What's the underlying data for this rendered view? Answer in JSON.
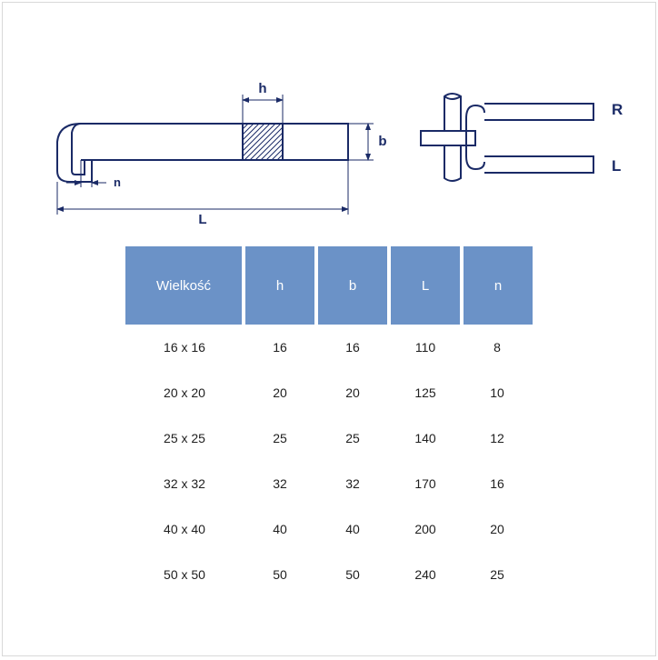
{
  "diagram": {
    "labels": {
      "h": "h",
      "b": "b",
      "n": "n",
      "L": "L",
      "R": "R",
      "L2": "L"
    },
    "stroke": "#1a2a66",
    "stroke_width": 2,
    "hatch_spacing": 5
  },
  "table": {
    "header_bg": "#6b92c7",
    "header_fg": "#ffffff",
    "cell_fg": "#202020",
    "gap_color": "#ffffff",
    "columns": [
      {
        "key": "size",
        "label": "Wielkość",
        "class": "size"
      },
      {
        "key": "h",
        "label": "h",
        "class": "dim"
      },
      {
        "key": "b",
        "label": "b",
        "class": "dim"
      },
      {
        "key": "L",
        "label": "L",
        "class": "dim"
      },
      {
        "key": "n",
        "label": "n",
        "class": "dim"
      }
    ],
    "rows": [
      {
        "size": "16 x 16",
        "h": "16",
        "b": "16",
        "L": "110",
        "n": "8"
      },
      {
        "size": "20 x 20",
        "h": "20",
        "b": "20",
        "L": "125",
        "n": "10"
      },
      {
        "size": "25 x 25",
        "h": "25",
        "b": "25",
        "L": "140",
        "n": "12"
      },
      {
        "size": "32 x 32",
        "h": "32",
        "b": "32",
        "L": "170",
        "n": "16"
      },
      {
        "size": "40 x 40",
        "h": "40",
        "b": "40",
        "L": "200",
        "n": "20"
      },
      {
        "size": "50 x 50",
        "h": "50",
        "b": "50",
        "L": "240",
        "n": "25"
      }
    ]
  }
}
